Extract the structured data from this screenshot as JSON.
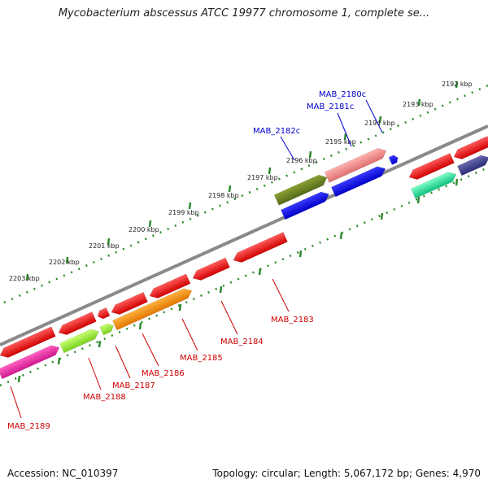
{
  "title": "Mycobacterium abscessus ATCC 19977 chromosome 1, complete se...",
  "footer": {
    "accession": "Accession: NC_010397",
    "summary": "Topology: circular; Length: 5,067,172 bp; Genes: 4,970"
  },
  "ruler": {
    "unit": "kbp",
    "ticks": [
      {
        "kbp": 2192,
        "label": "2192 kbp"
      },
      {
        "kbp": 2193,
        "label": "2193 kbp"
      },
      {
        "kbp": 2194,
        "label": "2194 kbp"
      },
      {
        "kbp": 2195,
        "label": "2195 kbp"
      },
      {
        "kbp": 2196,
        "label": "2196 kbp"
      },
      {
        "kbp": 2197,
        "label": "2197 kbp"
      },
      {
        "kbp": 2198,
        "label": "2198 kbp"
      },
      {
        "kbp": 2199,
        "label": "2199 kbp"
      },
      {
        "kbp": 2200,
        "label": "2200 kbp"
      },
      {
        "kbp": 2201,
        "label": "2201 kbp"
      },
      {
        "kbp": 2202,
        "label": "2202 kbp"
      },
      {
        "kbp": 2203,
        "label": "2203 kbp"
      }
    ]
  },
  "colors": {
    "backbone": "#8a8a8a",
    "ruler_ticks": "#2e8b2e",
    "forward_label": "#0000cc",
    "reverse_label": "#cc0000"
  },
  "labeled_genes": [
    {
      "name": "MAB_2180c",
      "strand": "forward"
    },
    {
      "name": "MAB_2181c",
      "strand": "forward"
    },
    {
      "name": "MAB_2182c",
      "strand": "forward"
    },
    {
      "name": "MAB_2183",
      "strand": "reverse"
    },
    {
      "name": "MAB_2184",
      "strand": "reverse"
    },
    {
      "name": "MAB_2185",
      "strand": "reverse"
    },
    {
      "name": "MAB_2186",
      "strand": "reverse"
    },
    {
      "name": "MAB_2187",
      "strand": "reverse"
    },
    {
      "name": "MAB_2188",
      "strand": "reverse"
    },
    {
      "name": "MAB_2189",
      "strand": "reverse"
    }
  ]
}
